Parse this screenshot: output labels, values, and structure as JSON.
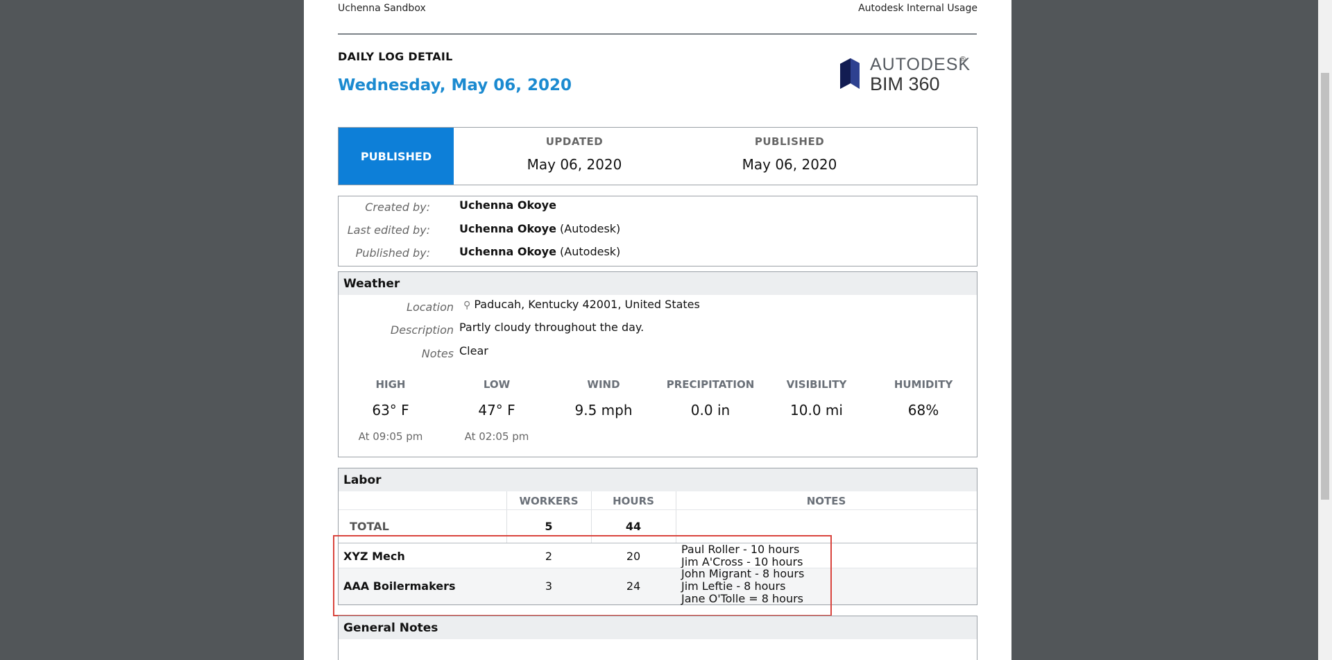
{
  "header": {
    "project": "Uchenna Sandbox",
    "company": "Autodesk Internal Usage",
    "doc_title": "DAILY LOG DETAIL",
    "date": "Wednesday, May 06, 2020",
    "logo_line1": "AUTODESK",
    "logo_line2": "BIM 360"
  },
  "status": {
    "badge": "PUBLISHED",
    "updated_label": "UPDATED",
    "updated_value": "May 06, 2020",
    "published_label": "PUBLISHED",
    "published_value": "May 06, 2020"
  },
  "people": {
    "created_label": "Created by:",
    "created_name": "Uchenna Okoye",
    "edited_label": "Last edited by:",
    "edited_name": "Uchenna Okoye",
    "edited_org": "(Autodesk)",
    "published_label": "Published by:",
    "published_name": "Uchenna Okoye",
    "published_org": "(Autodesk)"
  },
  "weather": {
    "title": "Weather",
    "location_label": "Location",
    "location_value": "Paducah, Kentucky 42001, United States",
    "description_label": "Description",
    "description_value": "Partly cloudy throughout the day.",
    "notes_label": "Notes",
    "notes_value": "Clear",
    "stats": [
      {
        "label": "HIGH",
        "value": "63° F",
        "sub": "At 09:05 pm"
      },
      {
        "label": "LOW",
        "value": "47° F",
        "sub": "At 02:05 pm"
      },
      {
        "label": "WIND",
        "value": "9.5 mph",
        "sub": ""
      },
      {
        "label": "PRECIPITATION",
        "value": "0.0 in",
        "sub": ""
      },
      {
        "label": "VISIBILITY",
        "value": "10.0 mi",
        "sub": ""
      },
      {
        "label": "HUMIDITY",
        "value": "68%",
        "sub": ""
      }
    ]
  },
  "labor": {
    "title": "Labor",
    "col_workers": "WORKERS",
    "col_hours": "HOURS",
    "col_notes": "NOTES",
    "total_label": "TOTAL",
    "total_workers": "5",
    "total_hours": "44",
    "rows": [
      {
        "company": "XYZ Mech",
        "workers": "2",
        "hours": "20",
        "notes": [
          "Paul Roller - 10 hours",
          "Jim A'Cross - 10 hours"
        ]
      },
      {
        "company": "AAA Boilermakers",
        "workers": "3",
        "hours": "24",
        "notes": [
          "John Migrant - 8 hours",
          "Jim Leftie - 8 hours",
          "Jane O'Tolle = 8 hours"
        ]
      }
    ]
  },
  "general_notes": {
    "title": "General Notes"
  },
  "colors": {
    "accent": "#1b8ad0",
    "badge": "#0d7fd8",
    "highlight": "#d9443d"
  }
}
